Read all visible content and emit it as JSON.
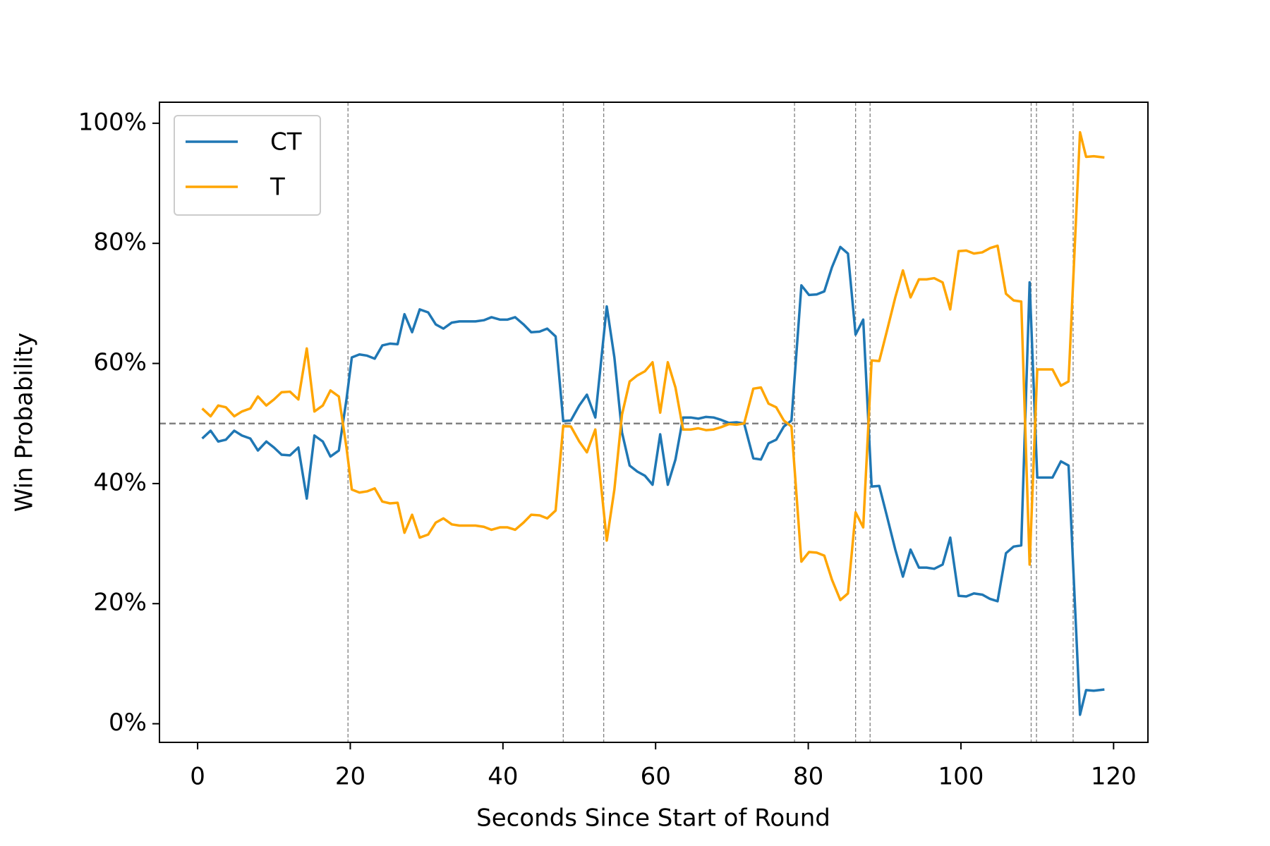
{
  "chart_data": {
    "type": "line",
    "xlabel": "Seconds Since Start of Round",
    "ylabel": "Win Probability",
    "x": [
      0.6,
      1.7,
      2.7,
      3.7,
      4.8,
      5.8,
      6.9,
      7.9,
      9,
      10,
      11,
      12.1,
      13.2,
      14.3,
      15.3,
      16.4,
      17.4,
      18.5,
      19.5,
      20.2,
      21.2,
      22.2,
      23.2,
      24.2,
      25.2,
      26.2,
      27.1,
      28.1,
      29.1,
      30.2,
      31.2,
      32.2,
      33.3,
      34.3,
      35.4,
      36.4,
      37.5,
      38.5,
      39.6,
      40.6,
      41.6,
      42.7,
      43.7,
      44.8,
      45.8,
      46.9,
      47.9,
      48.9,
      50,
      51,
      52.1,
      53.6,
      54.6,
      55.6,
      56.6,
      57.6,
      58.6,
      59.6,
      60.6,
      61.6,
      62.6,
      63.6,
      64.6,
      65.6,
      66.6,
      67.6,
      68.6,
      69.6,
      70.6,
      71.6,
      72.8,
      73.8,
      74.8,
      75.8,
      76.8,
      77.8,
      79.1,
      80.1,
      81.1,
      82.1,
      83.1,
      84.2,
      85.2,
      86.2,
      87.2,
      88.3,
      89.3,
      90.3,
      91.4,
      92.4,
      93.4,
      94.5,
      95.5,
      96.5,
      97.6,
      98.6,
      99.7,
      100.7,
      101.7,
      102.8,
      103.8,
      104.8,
      105.9,
      106.9,
      107.9,
      109,
      110,
      111,
      112,
      113.1,
      114.1,
      115.6,
      116.4,
      117.4,
      118.8
    ],
    "series": [
      {
        "name": "CT",
        "color": "#1f77b4",
        "values": [
          47.5,
          48.8,
          47,
          47.3,
          48.8,
          48,
          47.5,
          45.5,
          47,
          46,
          44.8,
          44.7,
          46,
          37.5,
          48,
          47,
          44.5,
          45.5,
          54,
          61,
          61.5,
          61.3,
          60.8,
          63,
          63.3,
          63.2,
          68.2,
          65.2,
          69,
          68.5,
          66.5,
          65.8,
          66.8,
          67,
          67,
          67,
          67.2,
          67.7,
          67.3,
          67.3,
          67.7,
          66.5,
          65.2,
          65.3,
          65.8,
          64.5,
          50.4,
          50.5,
          53,
          54.8,
          51,
          69.5,
          61,
          48.5,
          43,
          42,
          41.3,
          39.8,
          48.2,
          39.8,
          44,
          51,
          51,
          50.8,
          51.1,
          51,
          50.6,
          50.1,
          50.2,
          50,
          44.2,
          44,
          46.7,
          47.3,
          49.5,
          50.5,
          73,
          71.4,
          71.5,
          72,
          76,
          79.4,
          78.3,
          64.8,
          67.3,
          39.5,
          39.6,
          34.6,
          29,
          24.5,
          29,
          26,
          26,
          25.8,
          26.5,
          31,
          21.3,
          21.2,
          21.7,
          21.5,
          20.8,
          20.4,
          28.4,
          29.5,
          29.7,
          73.5,
          41,
          41,
          41,
          43.7,
          43,
          1.5,
          5.6,
          5.5,
          5.7
        ]
      },
      {
        "name": "T",
        "color": "#ffa500",
        "values": [
          52.5,
          51.2,
          53,
          52.7,
          51.2,
          52,
          52.5,
          54.5,
          53,
          54,
          55.2,
          55.3,
          54,
          62.5,
          52,
          53,
          55.5,
          54.5,
          46,
          39,
          38.5,
          38.7,
          39.2,
          37,
          36.7,
          36.8,
          31.8,
          34.8,
          31,
          31.5,
          33.5,
          34.2,
          33.2,
          33,
          33,
          33,
          32.8,
          32.3,
          32.7,
          32.7,
          32.3,
          33.5,
          34.8,
          34.7,
          34.2,
          35.5,
          49.6,
          49.5,
          47,
          45.2,
          49,
          30.5,
          39,
          51.5,
          57,
          58,
          58.7,
          60.2,
          51.8,
          60.2,
          56,
          49,
          49,
          49.2,
          48.9,
          49,
          49.4,
          49.9,
          49.8,
          50,
          55.8,
          56,
          53.3,
          52.7,
          50.5,
          49.5,
          27,
          28.6,
          28.5,
          28,
          24,
          20.6,
          21.7,
          35.2,
          32.7,
          60.5,
          60.4,
          65.4,
          71,
          75.5,
          71,
          74,
          74,
          74.2,
          73.5,
          69,
          78.7,
          78.8,
          78.3,
          78.5,
          79.2,
          79.6,
          71.6,
          70.5,
          70.3,
          26.5,
          59,
          59,
          59,
          56.3,
          57,
          98.5,
          94.4,
          94.5,
          94.3
        ]
      }
    ],
    "xlim": [
      -5,
      124.5
    ],
    "xticks": [
      0,
      20,
      40,
      60,
      80,
      100,
      120
    ],
    "ylim": [
      -3.1,
      103.5
    ],
    "yticks": [
      {
        "value": 0,
        "label": "0%"
      },
      {
        "value": 20,
        "label": "20%"
      },
      {
        "value": 40,
        "label": "40%"
      },
      {
        "value": 60,
        "label": "60%"
      },
      {
        "value": 80,
        "label": "80%"
      },
      {
        "value": 100,
        "label": "100%"
      }
    ],
    "hline": 50,
    "vlines": [
      19.7,
      47.9,
      53.2,
      78.2,
      86.2,
      88.1,
      109.2,
      109.9,
      114.7
    ],
    "legend": "upper left",
    "grid": false
  }
}
